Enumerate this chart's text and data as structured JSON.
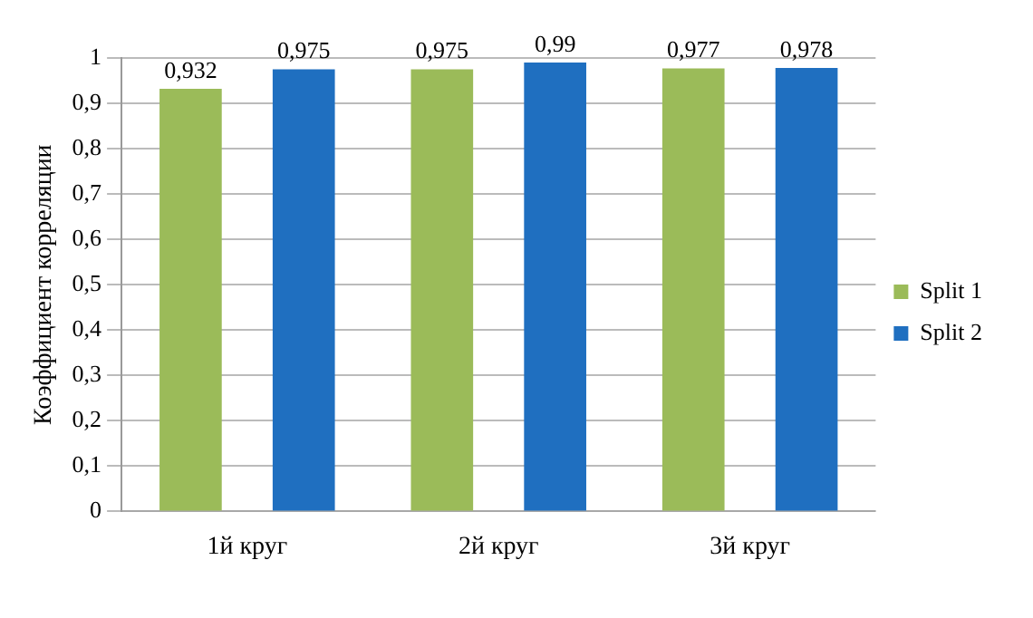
{
  "chart_data": {
    "type": "bar",
    "ylabel": "Коэффициент корреляции",
    "categories": [
      "1й круг",
      "2й круг",
      "3й круг"
    ],
    "series": [
      {
        "name": "Split 1",
        "color": "#9bbb59",
        "values": [
          0.932,
          0.975,
          0.977
        ],
        "value_labels": [
          "0,932",
          "0,975",
          "0,977"
        ]
      },
      {
        "name": "Split 2",
        "color": "#1f6fc0",
        "values": [
          0.975,
          0.99,
          0.978
        ],
        "value_labels": [
          "0,975",
          "0,99",
          "0,978"
        ]
      }
    ],
    "ylim": [
      0,
      1
    ],
    "yticks": [
      0,
      {
        "value": 0.1,
        "label": "0,1"
      },
      {
        "value": 0.2,
        "label": "0,2"
      },
      {
        "value": 0.3,
        "label": "0,3"
      },
      {
        "value": 0.4,
        "label": "0,4"
      },
      {
        "value": 0.5,
        "label": "0,5"
      },
      {
        "value": 0.6,
        "label": "0,6"
      },
      {
        "value": 0.7,
        "label": "0,7"
      },
      {
        "value": 0.8,
        "label": "0,8"
      },
      {
        "value": 0.9,
        "label": "0,9"
      },
      1
    ],
    "grid": "y",
    "legend": "right"
  }
}
